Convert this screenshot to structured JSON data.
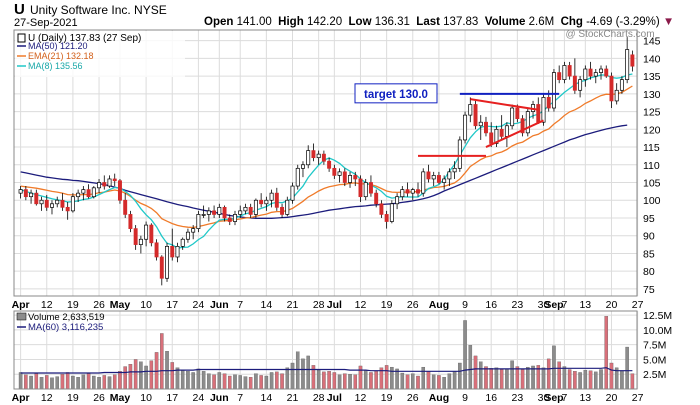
{
  "header": {
    "ticker": "U",
    "company": "Unity Software Inc.  NYSE",
    "date": "27-Sep-2021",
    "watermark": "@ StockCharts.com",
    "quote": {
      "open_label": "Open",
      "open": "141.00",
      "high_label": "High",
      "high": "142.20",
      "low_label": "Low",
      "low": "136.31",
      "last_label": "Last",
      "last": "137.83",
      "volume_label": "Volume",
      "volume": "2.6M",
      "chg_label": "Chg",
      "chg": "-4.69 (-3.29%)",
      "chg_arrow": "▼"
    }
  },
  "legend": {
    "main": "U (Daily) 137.83 (27 Sep)",
    "ma50": "MA(50) 121.20",
    "ema21": "EMA(21) 132.18",
    "ma8": "MA(8) 135.56",
    "volume": "Volume 2,633,519",
    "vma60": "MA(60) 3,116,235"
  },
  "annotation": {
    "target_label": "target 130.0"
  },
  "colors": {
    "up": "#ffffff",
    "down": "#d42a2a",
    "wick": "#000000",
    "ma50": "#1c1c7c",
    "ema21": "#f07b2a",
    "ma8": "#20c8c8",
    "trendline": "#e62020",
    "target_line": "#1020c0",
    "vol_up": "#8c8c8c",
    "vol_down": "#d8707a",
    "grid": "#dcdcdc"
  },
  "chart_data": {
    "type": "candlestick",
    "ylim": [
      73,
      148
    ],
    "yticks": [
      75,
      80,
      85,
      90,
      95,
      100,
      105,
      110,
      115,
      120,
      125,
      130,
      135,
      140,
      145
    ],
    "vol_ylim": [
      0,
      13.2
    ],
    "vol_yticks": [
      2.5,
      5.0,
      7.5,
      10.0,
      12.5
    ],
    "vol_ytick_labels": [
      "2.5M",
      "5.0M",
      "7.5M",
      "10.0M",
      "12.5M"
    ],
    "xticks": [
      {
        "label": "Apr",
        "i": 0,
        "major": true
      },
      {
        "label": "12",
        "i": 5
      },
      {
        "label": "19",
        "i": 10
      },
      {
        "label": "26",
        "i": 15
      },
      {
        "label": "May",
        "i": 19,
        "major": true
      },
      {
        "label": "10",
        "i": 24
      },
      {
        "label": "17",
        "i": 29
      },
      {
        "label": "24",
        "i": 34
      },
      {
        "label": "Jun",
        "i": 38,
        "major": true
      },
      {
        "label": "7",
        "i": 42
      },
      {
        "label": "14",
        "i": 47
      },
      {
        "label": "21",
        "i": 52
      },
      {
        "label": "28",
        "i": 57
      },
      {
        "label": "Jul",
        "i": 60,
        "major": true
      },
      {
        "label": "12",
        "i": 65
      },
      {
        "label": "19",
        "i": 70
      },
      {
        "label": "26",
        "i": 75
      },
      {
        "label": "Aug",
        "i": 80,
        "major": true
      },
      {
        "label": "9",
        "i": 85
      },
      {
        "label": "16",
        "i": 90
      },
      {
        "label": "23",
        "i": 95
      },
      {
        "label": "30",
        "i": 100
      },
      {
        "label": "Sep",
        "i": 102,
        "major": true
      },
      {
        "label": "7",
        "i": 104
      },
      {
        "label": "13",
        "i": 108
      },
      {
        "label": "20",
        "i": 113
      },
      {
        "label": "27",
        "i": 118
      }
    ],
    "ohlc": [
      [
        102,
        104,
        100.5,
        103
      ],
      [
        103,
        104,
        100,
        101
      ],
      [
        101,
        103,
        99,
        102
      ],
      [
        102,
        103,
        98.5,
        99
      ],
      [
        99,
        101,
        97,
        100
      ],
      [
        100,
        101.5,
        97,
        98
      ],
      [
        98,
        100,
        96,
        99
      ],
      [
        99,
        101,
        98,
        100
      ],
      [
        100,
        102,
        97,
        98
      ],
      [
        98,
        99.5,
        94.5,
        97
      ],
      [
        97,
        102,
        96.5,
        101
      ],
      [
        101,
        103,
        99.5,
        102
      ],
      [
        102,
        104,
        100,
        103
      ],
      [
        103,
        104.5,
        100.5,
        101
      ],
      [
        101,
        104,
        100.5,
        103.5
      ],
      [
        103.5,
        106,
        102,
        105
      ],
      [
        105,
        107,
        103,
        104
      ],
      [
        104,
        107,
        103.5,
        106
      ],
      [
        106,
        107.5,
        104,
        105.5
      ],
      [
        105.5,
        106,
        99,
        100
      ],
      [
        100,
        102,
        95,
        96
      ],
      [
        96,
        97,
        91,
        92
      ],
      [
        92,
        93,
        86,
        87.5
      ],
      [
        87.5,
        90,
        85,
        89
      ],
      [
        89,
        94,
        87,
        93
      ],
      [
        93,
        93.5,
        87,
        88
      ],
      [
        88,
        89,
        83,
        84
      ],
      [
        84,
        84.5,
        76,
        78
      ],
      [
        78,
        88,
        77,
        87
      ],
      [
        87,
        92,
        83,
        84
      ],
      [
        84,
        88,
        82.5,
        87
      ],
      [
        87,
        89.5,
        86,
        89
      ],
      [
        89,
        92,
        88,
        91
      ],
      [
        91,
        93,
        89,
        92
      ],
      [
        92,
        97,
        91,
        96
      ],
      [
        96,
        98.5,
        95,
        96
      ],
      [
        96,
        98,
        94,
        97
      ],
      [
        97,
        98.5,
        95,
        96
      ],
      [
        96,
        99,
        95,
        98
      ],
      [
        98,
        98.5,
        94,
        95
      ],
      [
        95,
        96,
        93,
        94
      ],
      [
        94,
        97,
        93,
        96
      ],
      [
        96,
        98.5,
        95,
        97
      ],
      [
        97,
        99,
        96,
        98
      ],
      [
        98,
        99,
        95,
        96
      ],
      [
        96,
        100.5,
        95,
        100
      ],
      [
        100,
        102,
        98,
        99
      ],
      [
        99,
        101,
        97,
        100
      ],
      [
        100,
        103,
        98,
        102
      ],
      [
        102,
        103.5,
        97,
        98
      ],
      [
        98,
        99,
        95,
        96
      ],
      [
        96,
        101,
        95.5,
        100
      ],
      [
        100,
        105,
        99,
        104
      ],
      [
        104,
        110,
        103,
        109
      ],
      [
        109,
        111,
        106.5,
        110
      ],
      [
        110,
        115.5,
        109,
        114
      ],
      [
        114,
        116,
        111,
        112
      ],
      [
        112,
        114,
        110,
        113
      ],
      [
        113,
        114,
        110,
        111
      ],
      [
        111,
        112,
        108,
        109
      ],
      [
        109,
        110,
        106,
        107
      ],
      [
        107,
        109,
        105,
        108
      ],
      [
        108,
        109,
        104,
        105
      ],
      [
        105,
        108,
        103.5,
        107
      ],
      [
        107,
        108,
        104,
        106
      ],
      [
        106,
        107,
        99.5,
        101
      ],
      [
        101,
        106,
        100,
        105
      ],
      [
        105,
        107,
        101,
        102
      ],
      [
        102,
        103,
        98,
        99
      ],
      [
        99,
        100,
        95,
        96
      ],
      [
        96,
        97,
        92,
        94
      ],
      [
        94,
        100,
        93.5,
        99
      ],
      [
        99,
        102,
        97.5,
        101
      ],
      [
        101,
        104,
        100,
        103
      ],
      [
        103,
        105,
        101,
        102
      ],
      [
        102,
        103.5,
        100,
        103
      ],
      [
        103,
        105,
        101,
        102
      ],
      [
        102,
        109,
        101,
        108
      ],
      [
        108,
        110,
        105,
        106
      ],
      [
        106,
        108,
        104,
        107
      ],
      [
        107,
        108,
        104.5,
        105
      ],
      [
        105,
        107,
        103,
        106
      ],
      [
        106,
        109,
        104,
        108
      ],
      [
        108,
        111,
        106,
        109
      ],
      [
        109,
        118,
        108,
        117
      ],
      [
        117,
        125,
        116,
        124
      ],
      [
        124,
        129,
        122,
        127
      ],
      [
        127,
        128,
        120,
        121
      ],
      [
        121,
        124,
        117,
        122
      ],
      [
        122,
        123.5,
        118,
        119
      ],
      [
        119,
        122,
        115,
        116
      ],
      [
        116,
        121,
        115,
        120
      ],
      [
        120,
        124,
        117,
        118
      ],
      [
        118,
        122,
        115,
        121
      ],
      [
        121,
        127,
        120,
        126
      ],
      [
        126,
        127,
        122,
        123
      ],
      [
        123,
        124,
        118,
        119
      ],
      [
        119,
        126,
        118,
        125
      ],
      [
        125,
        128,
        123,
        127
      ],
      [
        127,
        129,
        121.5,
        122
      ],
      [
        122,
        130,
        121,
        129
      ],
      [
        129,
        131,
        125,
        126
      ],
      [
        126,
        137,
        125,
        136
      ],
      [
        136,
        138,
        133,
        134
      ],
      [
        134,
        139,
        133,
        138
      ],
      [
        138,
        139,
        134,
        135
      ],
      [
        135,
        140,
        130,
        131
      ],
      [
        131,
        135,
        129,
        134
      ],
      [
        134,
        138,
        132,
        137
      ],
      [
        137,
        139,
        134,
        135
      ],
      [
        135,
        137,
        133,
        136
      ],
      [
        136,
        138,
        134,
        137
      ],
      [
        137,
        138,
        134.5,
        135
      ],
      [
        135,
        136,
        126,
        128
      ],
      [
        128,
        133,
        127,
        131
      ],
      [
        131,
        135,
        130,
        134
      ],
      [
        134,
        146,
        133,
        142.5
      ],
      [
        141,
        142.2,
        136.3,
        137.8
      ]
    ],
    "volume": [
      2.8,
      2.4,
      2.2,
      2.6,
      2.0,
      2.3,
      1.9,
      2.1,
      2.5,
      2.8,
      2.2,
      2.0,
      2.4,
      2.6,
      2.2,
      2.0,
      2.3,
      2.1,
      2.4,
      3.0,
      3.8,
      4.2,
      5.0,
      4.6,
      3.9,
      4.8,
      6.2,
      9.4,
      6.4,
      4.5,
      3.6,
      3.2,
      3.0,
      2.8,
      3.4,
      3.0,
      2.6,
      2.4,
      2.8,
      2.6,
      2.2,
      2.4,
      2.3,
      2.1,
      2.0,
      2.6,
      2.3,
      2.2,
      2.8,
      2.9,
      2.6,
      3.6,
      4.4,
      6.3,
      5.1,
      5.6,
      4.0,
      3.2,
      2.9,
      3.0,
      2.8,
      2.4,
      2.6,
      2.5,
      2.4,
      3.9,
      3.2,
      2.8,
      3.0,
      3.6,
      4.0,
      3.7,
      3.4,
      2.7,
      2.4,
      2.6,
      2.2,
      3.7,
      3.0,
      2.4,
      2.3,
      2.0,
      2.6,
      3.0,
      4.4,
      11.6,
      7.4,
      5.6,
      4.6,
      3.8,
      3.5,
      3.6,
      3.3,
      3.4,
      4.8,
      3.8,
      3.3,
      3.7,
      3.9,
      4.0,
      3.6,
      5.1,
      7.3,
      4.6,
      3.8,
      3.3,
      3.0,
      2.8,
      3.2,
      3.1,
      2.9,
      3.3,
      12.3,
      4.4,
      3.6,
      3.0,
      7.1,
      2.6
    ],
    "ma50": [
      108,
      107.7,
      107.4,
      107.1,
      106.8,
      106.5,
      106.3,
      106.1,
      105.9,
      105.8,
      105.6,
      105.5,
      105.3,
      105.1,
      104.9,
      104.7,
      104.4,
      104.1,
      103.7,
      103.3,
      102.8,
      102.4,
      102.0,
      101.6,
      101.2,
      100.8,
      100.4,
      100.0,
      99.6,
      99.2,
      98.8,
      98.5,
      98.2,
      97.8,
      97.5,
      97.2,
      96.9,
      96.6,
      96.3,
      96.0,
      95.7,
      95.5,
      95.3,
      95.1,
      95.0,
      94.9,
      94.9,
      94.9,
      94.9,
      95.0,
      95.1,
      95.2,
      95.4,
      95.6,
      95.8,
      96.0,
      96.3,
      96.6,
      96.9,
      97.2,
      97.4,
      97.6,
      97.8,
      98.0,
      98.2,
      98.3,
      98.4,
      98.6,
      98.7,
      98.8,
      98.9,
      99.0,
      99.2,
      99.4,
      99.6,
      99.8,
      100.1,
      100.4,
      100.8,
      101.3,
      101.9,
      102.6,
      103.2,
      103.8,
      104.4,
      105.0,
      105.6,
      106.2,
      106.8,
      107.4,
      108.0,
      108.6,
      109.2,
      109.8,
      110.4,
      111.0,
      111.6,
      112.2,
      112.8,
      113.4,
      114.0,
      114.6,
      115.2,
      115.8,
      116.4,
      117.0,
      117.5,
      118.0,
      118.5,
      118.9,
      119.3,
      119.7,
      120.1,
      120.4,
      120.7,
      121.0,
      121.2
    ],
    "ema21": [
      104,
      103.8,
      103.6,
      103.4,
      103.1,
      102.8,
      102.5,
      102.3,
      102.0,
      101.6,
      101.5,
      101.5,
      101.6,
      101.6,
      101.8,
      102.1,
      102.3,
      102.6,
      102.9,
      102.6,
      102.0,
      101.1,
      100.0,
      99.1,
      98.5,
      97.7,
      96.5,
      94.8,
      94.1,
      93.4,
      92.9,
      92.6,
      92.4,
      92.3,
      92.6,
      92.9,
      93.3,
      93.6,
      94.1,
      94.2,
      94.3,
      94.5,
      94.7,
      95.0,
      95.1,
      95.5,
      95.8,
      96.1,
      96.6,
      96.8,
      96.8,
      97.1,
      97.7,
      98.7,
      99.7,
      100.9,
      101.7,
      102.6,
      103.3,
      103.8,
      104.1,
      104.4,
      104.5,
      104.8,
      104.9,
      104.6,
      104.6,
      104.4,
      104.0,
      103.3,
      102.6,
      102.3,
      102.2,
      102.3,
      102.3,
      102.4,
      102.4,
      102.9,
      103.2,
      103.6,
      103.7,
      103.9,
      104.4,
      104.9,
      106.0,
      107.7,
      109.5,
      110.5,
      111.5,
      112.2,
      112.5,
      113.2,
      113.6,
      114.3,
      115.3,
      116.0,
      116.4,
      117.3,
      118.2,
      118.6,
      119.5,
      120.1,
      121.5,
      122.6,
      123.9,
      124.9,
      125.5,
      126.3,
      127.3,
      128.0,
      128.8,
      129.5,
      129.9,
      129.8,
      130.0,
      130.4,
      131.3,
      132.2
    ],
    "ma8": [
      103,
      102.5,
      102,
      101.6,
      101.2,
      100.8,
      100.4,
      100.1,
      99.9,
      99.5,
      99.6,
      99.8,
      100.2,
      100.4,
      100.9,
      101.6,
      102.3,
      103.0,
      103.6,
      103.4,
      102.5,
      101.4,
      99.7,
      97.6,
      95.9,
      94.5,
      92.5,
      89.9,
      87.9,
      87.4,
      86.5,
      86.7,
      86.8,
      87.7,
      88.9,
      89.8,
      91.6,
      93.1,
      94.4,
      94.6,
      94.6,
      95.0,
      95.5,
      96.2,
      96.5,
      97.2,
      97.7,
      98.2,
      99.1,
      99.4,
      99.3,
      99.8,
      100.6,
      102.3,
      104.0,
      106.4,
      108.2,
      109.9,
      111.3,
      111.9,
      111.3,
      110.4,
      109.1,
      108.2,
      107.3,
      106.0,
      105.0,
      104.2,
      103.5,
      102.5,
      101.1,
      100.6,
      100.8,
      101.0,
      100.9,
      100.9,
      100.9,
      102.0,
      103.3,
      103.8,
      104.4,
      105.9,
      108.2,
      110.1,
      112.7,
      115.2,
      117.6,
      119.3,
      120.6,
      120.9,
      120.8,
      120.7,
      120.9,
      121.8,
      121.5,
      121.7,
      122.2,
      123.1,
      123.8,
      124.3,
      125.2,
      126.7,
      127.8,
      129.1,
      130.4,
      131.5,
      132.6,
      133.4,
      133.8,
      134.5,
      134.9,
      135.3,
      135.3,
      134.6,
      134.4,
      134.6,
      135.3,
      135.6
    ],
    "vol_ma60": [
      2.7,
      2.7,
      2.7,
      2.7,
      2.7,
      2.7,
      2.7,
      2.7,
      2.7,
      2.7,
      2.7,
      2.7,
      2.7,
      2.7,
      2.7,
      2.7,
      2.8,
      2.8,
      2.8,
      2.8,
      2.8,
      2.9,
      2.9,
      2.9,
      3.0,
      3.0,
      3.0,
      3.1,
      3.1,
      3.1,
      3.2,
      3.2,
      3.2,
      3.2,
      3.3,
      3.3,
      3.3,
      3.3,
      3.3,
      3.3,
      3.3,
      3.3,
      3.3,
      3.3,
      3.3,
      3.3,
      3.3,
      3.3,
      3.3,
      3.3,
      3.3,
      3.3,
      3.3,
      3.3,
      3.3,
      3.3,
      3.3,
      3.3,
      3.3,
      3.3,
      3.3,
      3.3,
      3.3,
      3.2,
      3.2,
      3.2,
      3.2,
      3.1,
      3.1,
      3.1,
      3.1,
      3.0,
      3.0,
      3.0,
      3.0,
      3.0,
      3.0,
      3.0,
      3.0,
      3.0,
      3.0,
      3.0,
      3.0,
      3.0,
      3.0,
      3.2,
      3.3,
      3.4,
      3.4,
      3.4,
      3.4,
      3.4,
      3.4,
      3.4,
      3.4,
      3.4,
      3.4,
      3.4,
      3.4,
      3.4,
      3.4,
      3.4,
      3.5,
      3.5,
      3.5,
      3.5,
      3.5,
      3.5,
      3.5,
      3.5,
      3.5,
      3.5,
      3.6,
      3.2,
      3.1,
      3.1,
      3.1,
      3.1
    ],
    "annotations": {
      "target_level": 130,
      "trend_upper": [
        {
          "i": 86,
          "v": 128.5
        },
        {
          "i": 99,
          "v": 125.5
        }
      ],
      "trend_lower": [
        {
          "i": 89,
          "v": 115
        },
        {
          "i": 100,
          "v": 122.5
        }
      ],
      "breakout_level": {
        "i0": 76,
        "i1": 89,
        "v": 112.5
      }
    }
  }
}
